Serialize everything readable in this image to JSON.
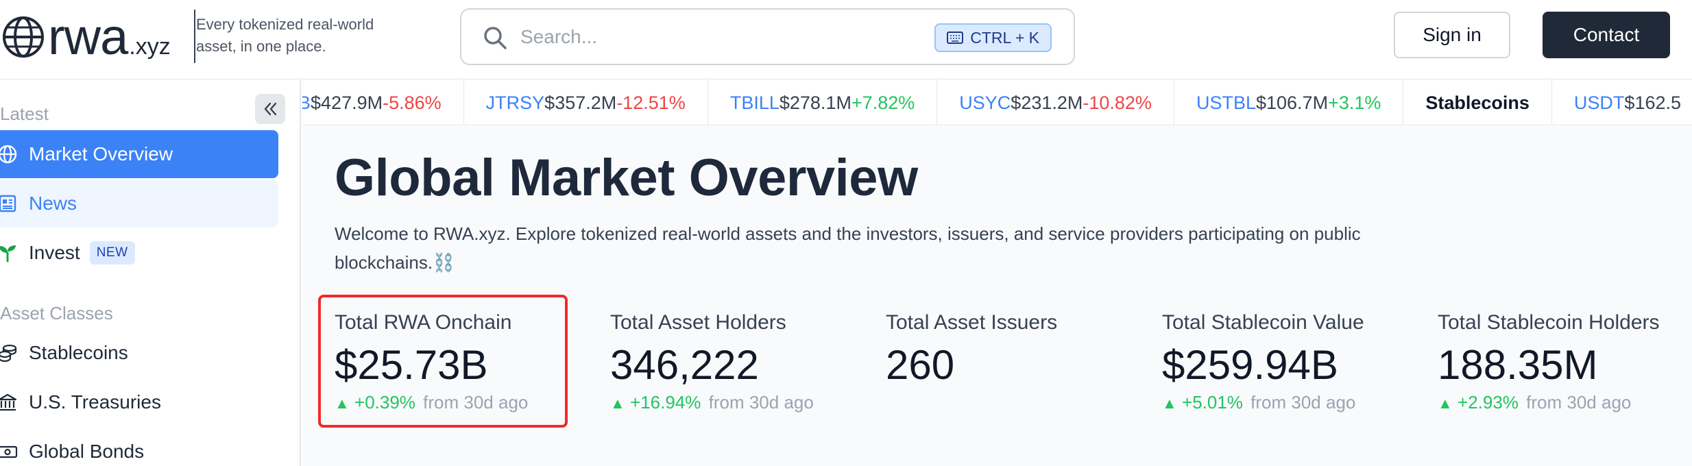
{
  "header": {
    "logo_text": "rwa",
    "logo_suffix": ".xyz",
    "tagline": "Every tokenized real-world asset, in one place.",
    "search": {
      "placeholder": "Search...",
      "shortcut": "CTRL + K"
    },
    "signin_label": "Sign in",
    "contact_label": "Contact"
  },
  "sidebar": {
    "latest_label": "Latest",
    "asset_classes_label": "Asset Classes",
    "latest_items": [
      {
        "label": "Market Overview",
        "icon": "globe-icon",
        "active": true
      },
      {
        "label": "News",
        "icon": "newspaper-icon"
      },
      {
        "label": "Invest",
        "icon": "sprout-icon",
        "badge": "NEW"
      }
    ],
    "asset_items": [
      {
        "label": "Stablecoins",
        "icon": "coins-icon"
      },
      {
        "label": "U.S. Treasuries",
        "icon": "bank-icon"
      },
      {
        "label": "Global Bonds",
        "icon": "banknote-icon"
      }
    ]
  },
  "ticker": [
    {
      "symbol": "B",
      "value": "$427.9M",
      "change": "-5.86%",
      "dir": "down"
    },
    {
      "symbol": "JTRSY",
      "value": "$357.2M",
      "change": "-12.51%",
      "dir": "down"
    },
    {
      "symbol": "TBILL",
      "value": "$278.1M",
      "change": "+7.82%",
      "dir": "up"
    },
    {
      "symbol": "USYC",
      "value": "$231.2M",
      "change": "-10.82%",
      "dir": "down"
    },
    {
      "symbol": "USTBL",
      "value": "$106.7M",
      "change": "+3.1%",
      "dir": "up"
    },
    {
      "category": "Stablecoins"
    },
    {
      "symbol": "USDT",
      "value": "$162.5",
      "change": "",
      "dir": "up"
    }
  ],
  "main": {
    "title": "Global Market Overview",
    "intro": "Welcome to RWA.xyz. Explore tokenized real-world assets and the investors, issuers, and service providers participating on public blockchains.⛓️",
    "stats": [
      {
        "label": "Total RWA Onchain",
        "value": "$25.73B",
        "change": "+0.39%",
        "from": "from 30d ago",
        "highlight": true
      },
      {
        "label": "Total Asset Holders",
        "value": "346,222",
        "change": "+16.94%",
        "from": "from 30d ago"
      },
      {
        "label": "Total Asset Issuers",
        "value": "260"
      },
      {
        "label": "Total Stablecoin Value",
        "value": "$259.94B",
        "change": "+5.01%",
        "from": "from 30d ago"
      },
      {
        "label": "Total Stablecoin Holders",
        "value": "188.35M",
        "change": "+2.93%",
        "from": "from 30d ago"
      }
    ]
  },
  "colors": {
    "accent": "#3b82f6",
    "positive": "#22c55e",
    "negative": "#ef4444",
    "highlight": "#ef2b2b",
    "dark_button": "#1f2937"
  }
}
